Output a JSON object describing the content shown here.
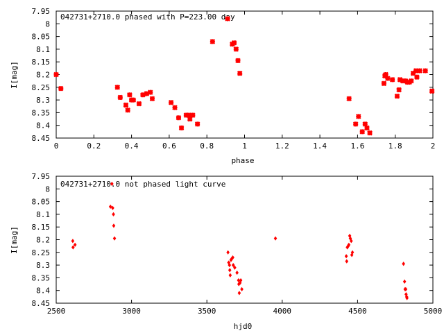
{
  "chart_data": [
    {
      "type": "scatter",
      "title": "042731+2710.0 phased with P=223.00 day",
      "xlabel": "phase",
      "ylabel": "I[mag]",
      "xlim": [
        0,
        2
      ],
      "ylim": [
        8.45,
        7.95
      ],
      "y_inverted": true,
      "xticks": [
        "0",
        "0.2",
        "0.4",
        "0.6",
        "0.8",
        "1",
        "1.2",
        "1.4",
        "1.6",
        "1.8",
        "2"
      ],
      "yticks": [
        "7.95",
        "8",
        "8.05",
        "8.1",
        "8.15",
        "8.2",
        "8.25",
        "8.3",
        "8.35",
        "8.4",
        "8.45"
      ],
      "marker_color": "#ff0000",
      "grid": false,
      "points": [
        [
          0.0,
          8.2
        ],
        [
          0.025,
          8.255
        ],
        [
          0.325,
          8.25
        ],
        [
          0.34,
          8.29
        ],
        [
          0.37,
          8.32
        ],
        [
          0.38,
          8.34
        ],
        [
          0.39,
          8.28
        ],
        [
          0.4,
          8.3
        ],
        [
          0.41,
          8.3
        ],
        [
          0.44,
          8.315
        ],
        [
          0.46,
          8.28
        ],
        [
          0.48,
          8.275
        ],
        [
          0.5,
          8.27
        ],
        [
          0.51,
          8.295
        ],
        [
          0.61,
          8.31
        ],
        [
          0.63,
          8.33
        ],
        [
          0.65,
          8.37
        ],
        [
          0.665,
          8.41
        ],
        [
          0.69,
          8.36
        ],
        [
          0.705,
          8.36
        ],
        [
          0.71,
          8.375
        ],
        [
          0.725,
          8.36
        ],
        [
          0.75,
          8.395
        ],
        [
          0.83,
          8.07
        ],
        [
          0.91,
          7.98
        ],
        [
          0.935,
          8.08
        ],
        [
          0.945,
          8.075
        ],
        [
          0.955,
          8.1
        ],
        [
          0.965,
          8.145
        ],
        [
          0.975,
          8.195
        ],
        [
          1.555,
          8.295
        ],
        [
          1.59,
          8.395
        ],
        [
          1.605,
          8.365
        ],
        [
          1.625,
          8.425
        ],
        [
          1.64,
          8.395
        ],
        [
          1.65,
          8.41
        ],
        [
          1.665,
          8.43
        ],
        [
          1.74,
          8.235
        ],
        [
          1.745,
          8.205
        ],
        [
          1.75,
          8.2
        ],
        [
          1.76,
          8.215
        ],
        [
          1.785,
          8.22
        ],
        [
          1.81,
          8.285
        ],
        [
          1.82,
          8.26
        ],
        [
          1.825,
          8.22
        ],
        [
          1.84,
          8.225
        ],
        [
          1.855,
          8.225
        ],
        [
          1.865,
          8.23
        ],
        [
          1.875,
          8.23
        ],
        [
          1.885,
          8.225
        ],
        [
          1.895,
          8.195
        ],
        [
          1.91,
          8.185
        ],
        [
          1.915,
          8.21
        ],
        [
          1.93,
          8.185
        ],
        [
          1.96,
          8.185
        ],
        [
          1.995,
          8.265
        ]
      ]
    },
    {
      "type": "scatter",
      "title": "042731+2710.0 not phased light curve",
      "xlabel": "hjd0",
      "ylabel": "I[mag]",
      "xlim": [
        2500,
        5000
      ],
      "ylim": [
        8.45,
        7.95
      ],
      "y_inverted": true,
      "xticks": [
        "2500",
        "3000",
        "3500",
        "4000",
        "4500",
        "5000"
      ],
      "yticks": [
        "7.95",
        "8",
        "8.05",
        "8.1",
        "8.15",
        "8.2",
        "8.25",
        "8.3",
        "8.35",
        "8.4",
        "8.45"
      ],
      "marker_color": "#ff0000",
      "grid": false,
      "points": [
        [
          2610,
          8.205
        ],
        [
          2612,
          8.23
        ],
        [
          2625,
          8.22
        ],
        [
          2860,
          8.07
        ],
        [
          2875,
          8.075
        ],
        [
          2880,
          8.1
        ],
        [
          2882,
          8.145
        ],
        [
          2887,
          8.195
        ],
        [
          2870,
          7.98
        ],
        [
          3640,
          8.25
        ],
        [
          3645,
          8.29
        ],
        [
          3650,
          8.3
        ],
        [
          3652,
          8.32
        ],
        [
          3655,
          8.34
        ],
        [
          3660,
          8.28
        ],
        [
          3665,
          8.275
        ],
        [
          3672,
          8.27
        ],
        [
          3675,
          8.3
        ],
        [
          3685,
          8.31
        ],
        [
          3700,
          8.33
        ],
        [
          3710,
          8.36
        ],
        [
          3712,
          8.375
        ],
        [
          3715,
          8.41
        ],
        [
          3720,
          8.37
        ],
        [
          3725,
          8.36
        ],
        [
          3732,
          8.395
        ],
        [
          3955,
          8.195
        ],
        [
          4425,
          8.265
        ],
        [
          4428,
          8.285
        ],
        [
          4432,
          8.23
        ],
        [
          4438,
          8.225
        ],
        [
          4442,
          8.22
        ],
        [
          4448,
          8.185
        ],
        [
          4452,
          8.195
        ],
        [
          4458,
          8.205
        ],
        [
          4462,
          8.26
        ],
        [
          4466,
          8.25
        ],
        [
          4805,
          8.295
        ],
        [
          4812,
          8.365
        ],
        [
          4815,
          8.395
        ],
        [
          4820,
          8.395
        ],
        [
          4822,
          8.415
        ],
        [
          4828,
          8.43
        ],
        [
          4826,
          8.425
        ]
      ]
    }
  ]
}
